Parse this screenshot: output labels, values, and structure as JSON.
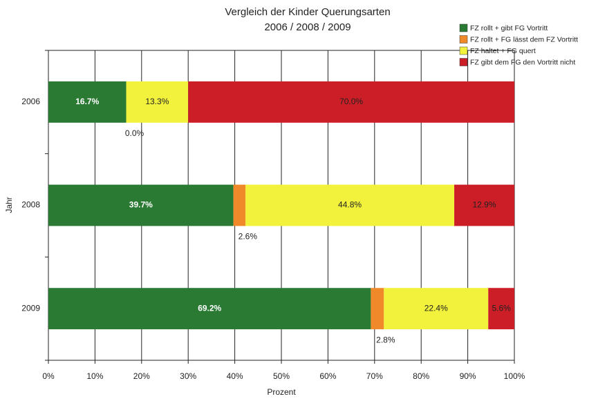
{
  "chart_data": {
    "type": "stacked_barh",
    "title": "Vergleich der Kinder Querungsarten",
    "subtitle": "2006 / 2008 / 2009",
    "xlabel": "Prozent",
    "ylabel": "Jahr",
    "categories": [
      "2006",
      "2008",
      "2009"
    ],
    "series": [
      {
        "name": "FZ rollt + gibt FG Vortritt",
        "color": "#2b7a34",
        "values": [
          16.7,
          39.7,
          69.2
        ],
        "value_labels": [
          "16.7%",
          "39.7%",
          "69.2%"
        ]
      },
      {
        "name": "FZ rollt + FG lässt dem FZ Vortritt",
        "color": "#f0892a",
        "values": [
          0.0,
          2.6,
          2.8
        ],
        "value_labels": [
          "0.0%",
          "2.6%",
          "2.8%"
        ]
      },
      {
        "name": "FZ haltet + FG quert",
        "color": "#f2f23c",
        "values": [
          13.3,
          44.8,
          22.4
        ],
        "value_labels": [
          "13.3%",
          "44.8%",
          "22.4%"
        ]
      },
      {
        "name": "FZ gibt dem FG den Vortritt nicht",
        "color": "#cc1e26",
        "values": [
          70.0,
          12.9,
          5.6
        ],
        "value_labels": [
          "70.0%",
          "12.9%",
          "5.6%"
        ]
      }
    ],
    "xlim": [
      0,
      100
    ],
    "xticks": [
      {
        "value": 0,
        "label": "0%"
      },
      {
        "value": 10,
        "label": "10%"
      },
      {
        "value": 20,
        "label": "20%"
      },
      {
        "value": 30,
        "label": "30%"
      },
      {
        "value": 40,
        "label": "40%"
      },
      {
        "value": 50,
        "label": "50%"
      },
      {
        "value": 60,
        "label": "60%"
      },
      {
        "value": 70,
        "label": "70%"
      },
      {
        "value": 80,
        "label": "80%"
      },
      {
        "value": 90,
        "label": "90%"
      },
      {
        "value": 100,
        "label": "100%"
      }
    ],
    "grid": true,
    "legend": "upper right"
  }
}
